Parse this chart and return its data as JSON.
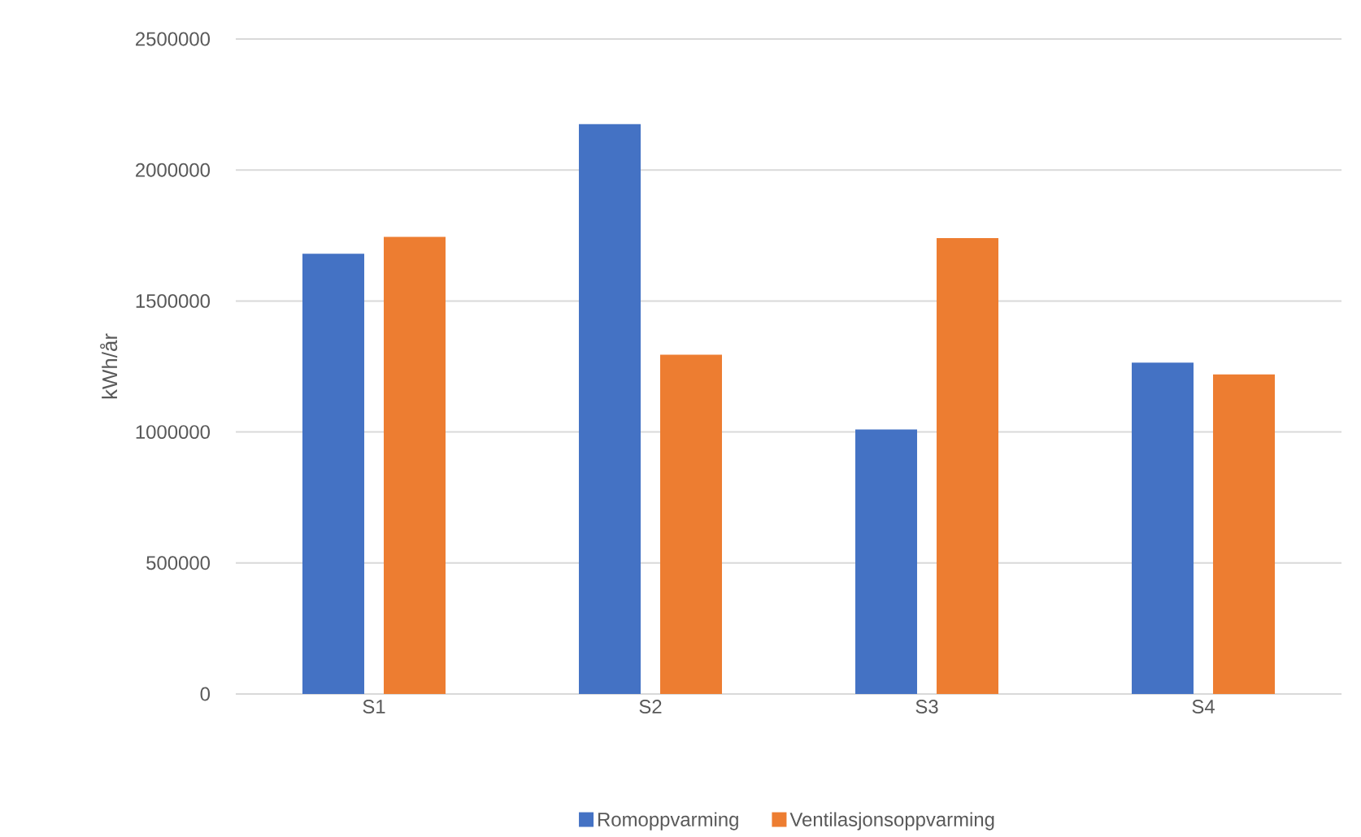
{
  "chart_data": {
    "type": "bar",
    "ylabel": "kWh/år",
    "categories": [
      "S1",
      "S2",
      "S3",
      "S4"
    ],
    "series": [
      {
        "name": "Romoppvarming",
        "color": "#4472c4",
        "values": [
          1680000,
          2175000,
          1010000,
          1265000
        ]
      },
      {
        "name": "Ventilasjonsoppvarming",
        "color": "#ed7d31",
        "values": [
          1745000,
          1295000,
          1740000,
          1220000
        ]
      }
    ],
    "ylim": [
      0,
      2500000
    ],
    "yticks": [
      0,
      500000,
      1000000,
      1500000,
      2000000,
      2500000
    ],
    "grid": "y",
    "legend": "bottom"
  }
}
